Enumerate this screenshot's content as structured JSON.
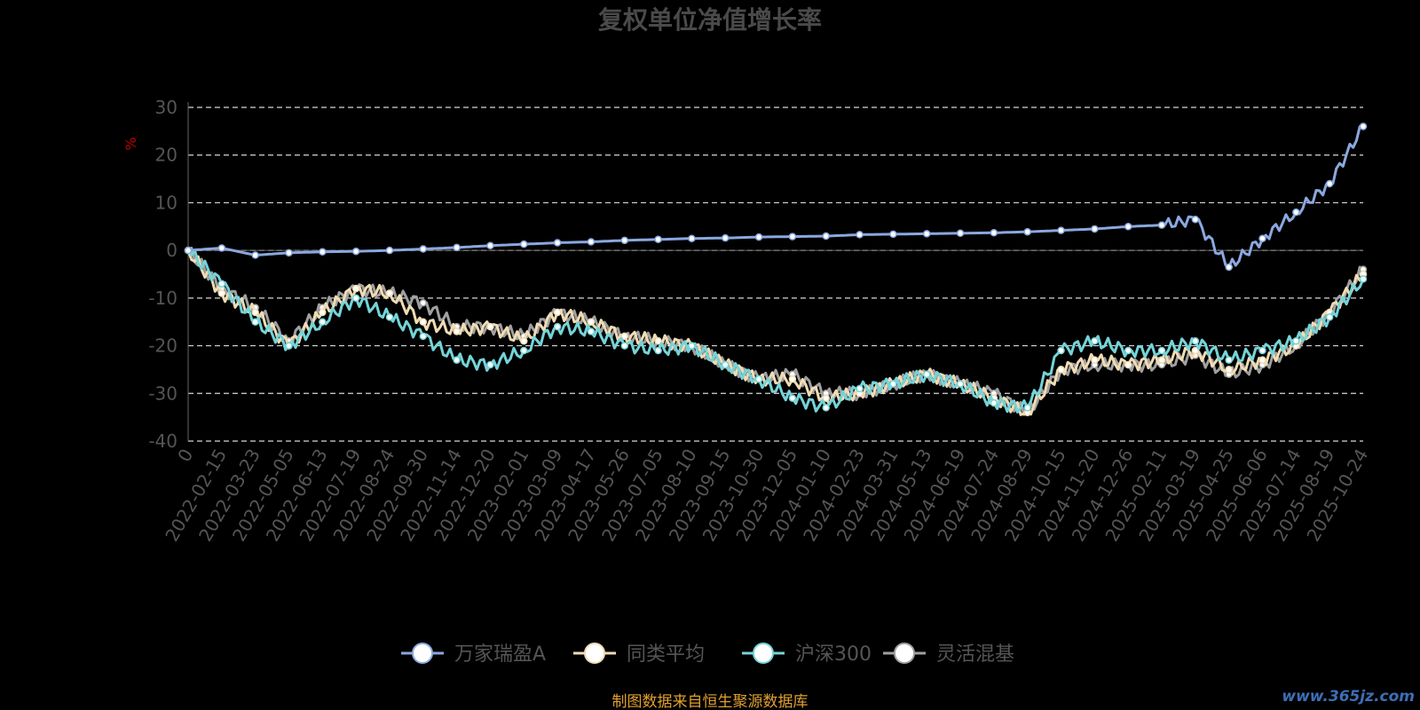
{
  "chart_data": {
    "type": "line",
    "title": "复权单位净值增长率",
    "ylabel": "%",
    "ylim": [
      -40,
      30
    ],
    "y_ticks": [
      "30",
      "20",
      "10",
      "0",
      "-10",
      "-20",
      "-30",
      "-40"
    ],
    "x_ticks": [
      "0",
      "2022-02-15",
      "2022-03-23",
      "2022-05-05",
      "2022-06-13",
      "2022-07-19",
      "2022-08-24",
      "2022-09-30",
      "2022-11-14",
      "2022-12-20",
      "2023-02-01",
      "2023-03-09",
      "2023-04-17",
      "2023-05-26",
      "2023-07-05",
      "2023-08-10",
      "2023-09-15",
      "2023-10-30",
      "2023-12-05",
      "2024-01-10",
      "2024-02-23",
      "2024-03-31",
      "2024-05-13",
      "2024-06-19",
      "2024-07-24",
      "2024-08-29",
      "2024-10-15",
      "2024-11-20",
      "2024-12-26",
      "2025-02-11",
      "2025-03-19",
      "2025-04-25",
      "2025-06-06",
      "2025-07-14",
      "2025-08-19",
      "2025-10-24"
    ],
    "grid": true,
    "legend_position": "bottom",
    "series": [
      {
        "name": "万家瑞盈A",
        "color": "#8aa8e0",
        "values": [
          0,
          0.5,
          -1,
          -0.5,
          -0.3,
          -0.2,
          0,
          0.3,
          0.6,
          1.0,
          1.3,
          1.6,
          1.8,
          2.1,
          2.3,
          2.5,
          2.6,
          2.8,
          2.9,
          3.0,
          3.3,
          3.4,
          3.5,
          3.6,
          3.7,
          3.9,
          4.2,
          4.5,
          5.0,
          5.3,
          6.5,
          -3.5,
          2.5,
          8.0,
          14.0,
          26.0
        ]
      },
      {
        "name": "同类平均",
        "color": "#f0dcb4",
        "values": [
          0,
          -9,
          -13,
          -20,
          -13,
          -8,
          -9,
          -15,
          -17,
          -16,
          -19,
          -13,
          -15,
          -18,
          -19,
          -20,
          -24,
          -27,
          -27,
          -31,
          -30,
          -28,
          -26,
          -28,
          -31,
          -34,
          -25,
          -23,
          -24,
          -23,
          -21,
          -25,
          -23,
          -20,
          -13,
          -5
        ]
      },
      {
        "name": "沪深300",
        "color": "#74d4d8",
        "values": [
          0,
          -7,
          -15,
          -20,
          -15,
          -10,
          -14,
          -18,
          -23,
          -24,
          -21,
          -16,
          -17,
          -20,
          -21,
          -20,
          -24,
          -27,
          -31,
          -33,
          -29,
          -28,
          -26,
          -28,
          -32,
          -33,
          -21,
          -19,
          -21,
          -21,
          -19,
          -23,
          -21,
          -19,
          -14,
          -6
        ]
      },
      {
        "name": "灵活混基",
        "color": "#a0a0a0",
        "values": [
          0,
          -8,
          -12,
          -19,
          -12,
          -8,
          -9,
          -11,
          -16,
          -16,
          -18,
          -13,
          -15,
          -18,
          -19,
          -20,
          -24,
          -27,
          -26,
          -30,
          -30,
          -28,
          -26,
          -28,
          -30,
          -34,
          -25,
          -24,
          -24,
          -24,
          -22,
          -26,
          -24,
          -20,
          -13,
          -4
        ]
      }
    ],
    "source_note": "制图数据来自恒生聚源数据库",
    "watermark": "www.365jz.com"
  }
}
